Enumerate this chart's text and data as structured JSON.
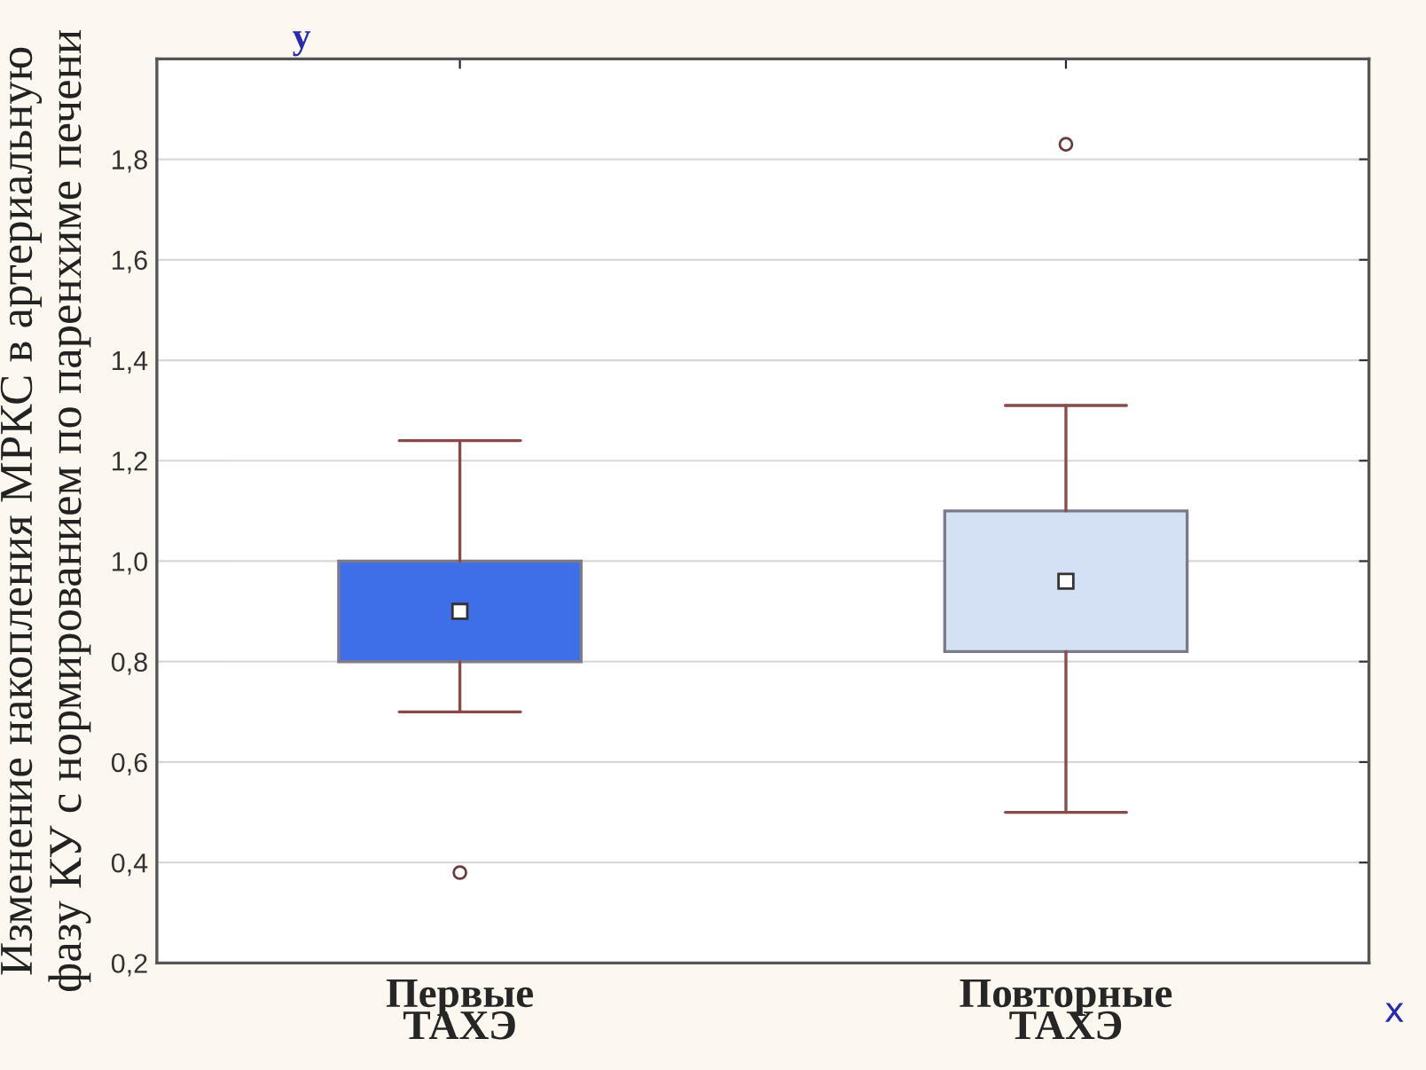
{
  "chart_data": {
    "type": "box",
    "ylabel": "Изменение накопления МРКС в артериальную фазу КУ с нормированием по паренхиме печени",
    "xlabel": "x",
    "annotations": [
      "y"
    ],
    "categories": [
      "Первые\nТАХЭ",
      "Повторные\nТАХЭ"
    ],
    "colors": [
      "#3f6fe8",
      "#d4e0f4"
    ],
    "boxes": [
      {
        "low": 0.7,
        "q1": 0.8,
        "median": 0.9,
        "q3": 1.0,
        "high": 1.24,
        "outliers": [
          0.38
        ]
      },
      {
        "low": 0.5,
        "q1": 0.82,
        "median": 0.96,
        "q3": 1.1,
        "high": 1.31,
        "outliers": [
          1.83
        ]
      }
    ],
    "ylim": [
      0.2,
      2.0
    ],
    "yticks": [
      {
        "value": 0.2,
        "label": "0,2"
      },
      {
        "value": 0.4,
        "label": "0,4"
      },
      {
        "value": 0.6,
        "label": "0,6"
      },
      {
        "value": 0.8,
        "label": "0,8"
      },
      {
        "value": 1.0,
        "label": "1,0"
      },
      {
        "value": 1.2,
        "label": "1,2"
      },
      {
        "value": 1.4,
        "label": "1,4"
      },
      {
        "value": 1.6,
        "label": "1,6"
      },
      {
        "value": 1.8,
        "label": "1,8"
      }
    ],
    "grid": "y"
  }
}
